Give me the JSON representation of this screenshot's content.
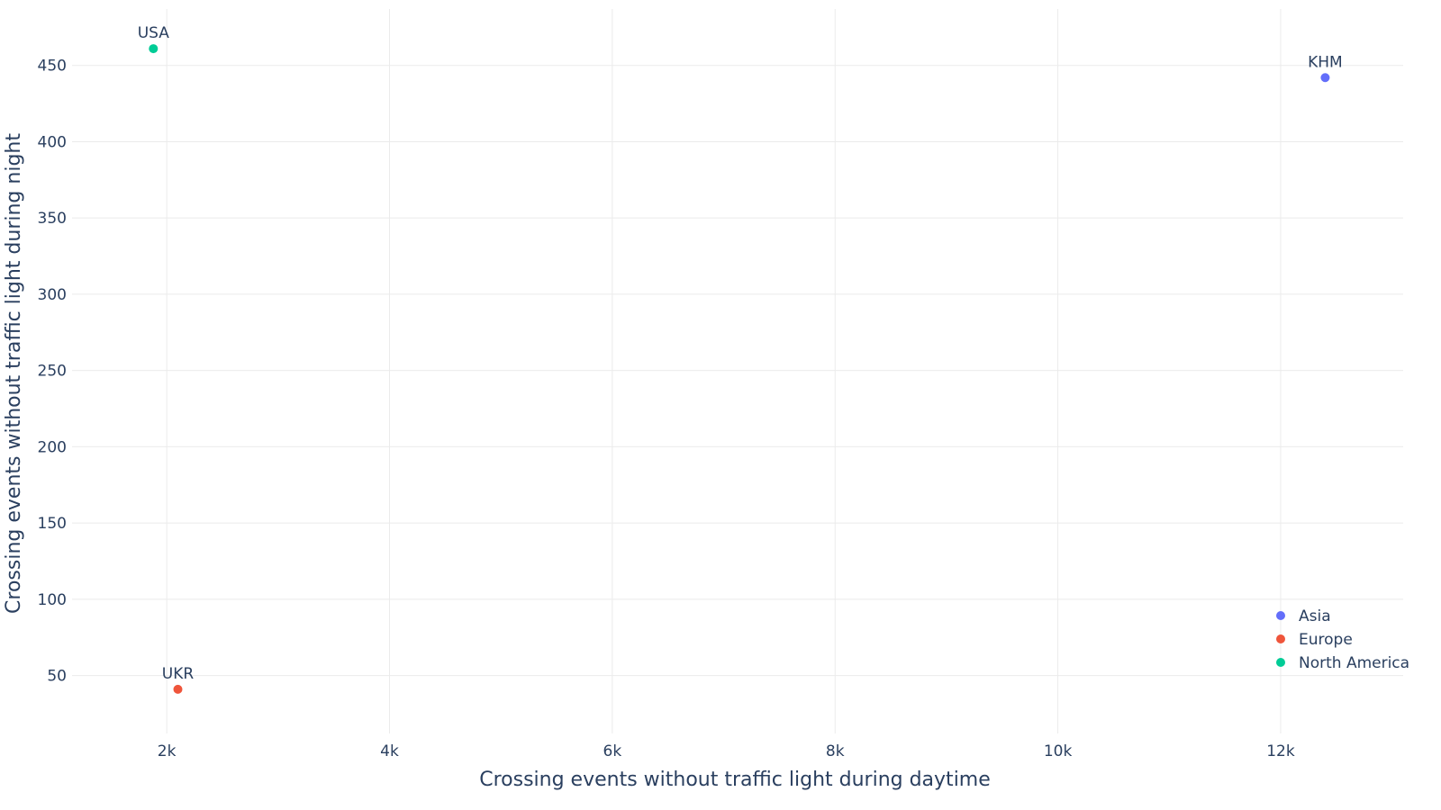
{
  "chart_data": {
    "type": "scatter",
    "xlabel": "Crossing events without traffic light during daytime",
    "ylabel": "Crossing events without traffic light during night",
    "xlim": [
      1150,
      13100
    ],
    "ylim": [
      12,
      487
    ],
    "x_ticks": [
      2000,
      4000,
      6000,
      8000,
      10000,
      12000
    ],
    "x_tick_labels": [
      "2k",
      "4k",
      "6k",
      "8k",
      "10k",
      "12k"
    ],
    "y_ticks": [
      50,
      100,
      150,
      200,
      250,
      300,
      350,
      400,
      450
    ],
    "y_tick_labels": [
      "50",
      "100",
      "150",
      "200",
      "250",
      "300",
      "350",
      "400",
      "450"
    ],
    "grid": true,
    "legend_position": "bottom-right",
    "series": [
      {
        "name": "Asia",
        "color": "#636efa",
        "points": [
          {
            "label": "KHM",
            "x": 12400,
            "y": 442
          }
        ]
      },
      {
        "name": "Europe",
        "color": "#ef553b",
        "points": [
          {
            "label": "UKR",
            "x": 2100,
            "y": 41
          }
        ]
      },
      {
        "name": "North America",
        "color": "#00cc96",
        "points": [
          {
            "label": "USA",
            "x": 1880,
            "y": 461
          }
        ]
      }
    ]
  }
}
